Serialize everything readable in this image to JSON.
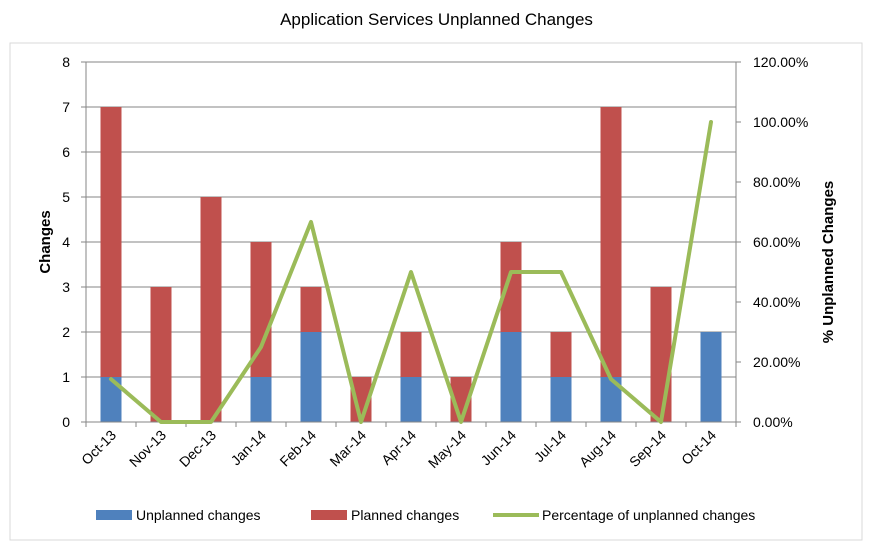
{
  "chart_data": {
    "type": "bar",
    "subtype": "stacked-bar-with-line",
    "title": "Application Services Unplanned Changes",
    "xlabel": "",
    "ylabel": "Changes",
    "y2label": "% Unplanned Changes",
    "ylim": [
      0,
      8
    ],
    "y2lim": [
      0,
      1.2
    ],
    "yticks": [
      "0",
      "1",
      "2",
      "3",
      "4",
      "5",
      "6",
      "7",
      "8"
    ],
    "y2ticks": [
      "0.00%",
      "20.00%",
      "40.00%",
      "60.00%",
      "80.00%",
      "100.00%",
      "120.00%"
    ],
    "grid": "horizontal",
    "legend_position": "bottom",
    "categories": [
      "Oct-13",
      "Nov-13",
      "Dec-13",
      "Jan-14",
      "Feb-14",
      "Mar-14",
      "Apr-14",
      "May-14",
      "Jun-14",
      "Jul-14",
      "Aug-14",
      "Sep-14",
      "Oct-14"
    ],
    "series": [
      {
        "name": "Unplanned changes",
        "kind": "bar",
        "color": "#4F81BD",
        "values": [
          1,
          0,
          0,
          1,
          2,
          0,
          1,
          0,
          2,
          1,
          1,
          0,
          2
        ]
      },
      {
        "name": "Planned changes",
        "kind": "bar",
        "color": "#C0504D",
        "values": [
          6,
          3,
          5,
          3,
          1,
          1,
          1,
          1,
          2,
          1,
          6,
          3,
          0
        ]
      },
      {
        "name": "Percentage of unplanned changes",
        "kind": "line",
        "axis": "right",
        "color": "#9BBB59",
        "values": [
          0.1429,
          0,
          0,
          0.25,
          0.6667,
          0,
          0.5,
          0,
          0.5,
          0.5,
          0.1429,
          0,
          1.0
        ]
      }
    ]
  }
}
